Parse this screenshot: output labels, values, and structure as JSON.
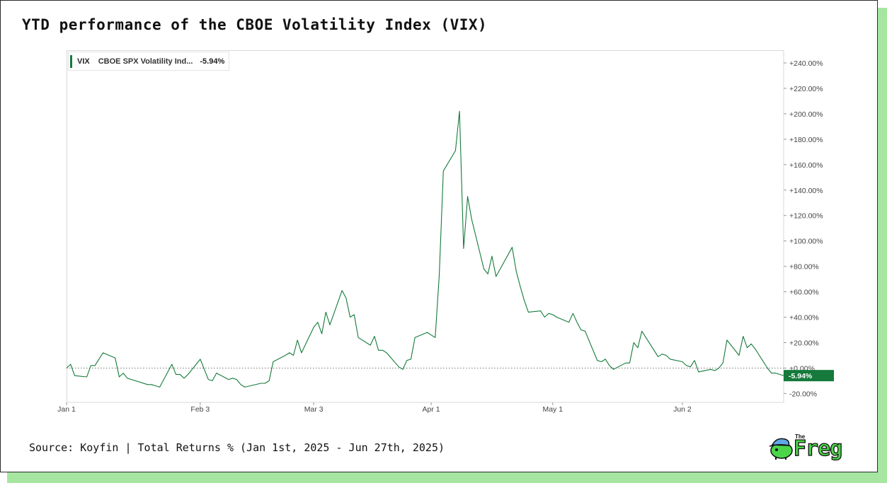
{
  "header": {
    "title": "YTD performance of the CBOE Volatility Index (VIX)"
  },
  "legend": {
    "ticker": "VIX",
    "name": "CBOE SPX Volatility Ind...",
    "value": "-5.94%",
    "color": "#157a3b"
  },
  "footer": {
    "source": "Source: Koyfin | Total Returns % (Jan 1st, 2025 - Jun 27th, 2025)",
    "logo_small": "The",
    "logo_text": "Freg"
  },
  "chart_data": {
    "type": "line",
    "title": "YTD performance of the CBOE Volatility Index (VIX)",
    "xlabel": "",
    "ylabel": "",
    "x_range": [
      "2025-01-01",
      "2025-06-27"
    ],
    "ylim": [
      -27,
      250
    ],
    "y_ticks": [
      -20,
      0,
      20,
      40,
      60,
      80,
      100,
      120,
      140,
      160,
      180,
      200,
      220,
      240
    ],
    "y_tick_labels": [
      "-20.00%",
      "+0.00%",
      "+20.00%",
      "+40.00%",
      "+60.00%",
      "+80.00%",
      "+100.00%",
      "+120.00%",
      "+140.00%",
      "+160.00%",
      "+180.00%",
      "+200.00%",
      "+220.00%",
      "+240.00%"
    ],
    "x_ticks": [
      {
        "date": "2025-01-01",
        "label": "Jan 1"
      },
      {
        "date": "2025-02-03",
        "label": "Feb 3"
      },
      {
        "date": "2025-03-03",
        "label": "Mar 3"
      },
      {
        "date": "2025-04-01",
        "label": "Apr 1"
      },
      {
        "date": "2025-05-01",
        "label": "May 1"
      },
      {
        "date": "2025-06-02",
        "label": "Jun 2"
      }
    ],
    "grid": false,
    "zero_line": "dotted",
    "legend_position": "top-left",
    "last_value_label": "-5.94%",
    "series": [
      {
        "name": "CBOE SPX Volatility Ind...",
        "color": "#157a3b",
        "points": [
          [
            "2025-01-01",
            0
          ],
          [
            "2025-01-02",
            3
          ],
          [
            "2025-01-03",
            -6
          ],
          [
            "2025-01-06",
            -7
          ],
          [
            "2025-01-07",
            2
          ],
          [
            "2025-01-08",
            2
          ],
          [
            "2025-01-10",
            12
          ],
          [
            "2025-01-13",
            8
          ],
          [
            "2025-01-14",
            -7
          ],
          [
            "2025-01-15",
            -4
          ],
          [
            "2025-01-16",
            -8
          ],
          [
            "2025-01-17",
            -9
          ],
          [
            "2025-01-21",
            -13
          ],
          [
            "2025-01-22",
            -13
          ],
          [
            "2025-01-23",
            -14
          ],
          [
            "2025-01-24",
            -15
          ],
          [
            "2025-01-27",
            3
          ],
          [
            "2025-01-28",
            -5
          ],
          [
            "2025-01-29",
            -5
          ],
          [
            "2025-01-30",
            -8
          ],
          [
            "2025-01-31",
            -5
          ],
          [
            "2025-02-03",
            7
          ],
          [
            "2025-02-04",
            -1
          ],
          [
            "2025-02-05",
            -9
          ],
          [
            "2025-02-06",
            -10
          ],
          [
            "2025-02-07",
            -4
          ],
          [
            "2025-02-10",
            -9
          ],
          [
            "2025-02-11",
            -8
          ],
          [
            "2025-02-12",
            -9
          ],
          [
            "2025-02-13",
            -13
          ],
          [
            "2025-02-14",
            -15
          ],
          [
            "2025-02-18",
            -12
          ],
          [
            "2025-02-19",
            -12
          ],
          [
            "2025-02-20",
            -10
          ],
          [
            "2025-02-21",
            5
          ],
          [
            "2025-02-24",
            10
          ],
          [
            "2025-02-25",
            12
          ],
          [
            "2025-02-26",
            10
          ],
          [
            "2025-02-27",
            22
          ],
          [
            "2025-02-28",
            12
          ],
          [
            "2025-03-03",
            32
          ],
          [
            "2025-03-04",
            36
          ],
          [
            "2025-03-05",
            27
          ],
          [
            "2025-03-06",
            44
          ],
          [
            "2025-03-07",
            34
          ],
          [
            "2025-03-10",
            61
          ],
          [
            "2025-03-11",
            55
          ],
          [
            "2025-03-12",
            40
          ],
          [
            "2025-03-13",
            42
          ],
          [
            "2025-03-14",
            24
          ],
          [
            "2025-03-17",
            18
          ],
          [
            "2025-03-18",
            25
          ],
          [
            "2025-03-19",
            14
          ],
          [
            "2025-03-20",
            14
          ],
          [
            "2025-03-21",
            12
          ],
          [
            "2025-03-24",
            1
          ],
          [
            "2025-03-25",
            -1
          ],
          [
            "2025-03-26",
            6
          ],
          [
            "2025-03-27",
            7
          ],
          [
            "2025-03-28",
            24
          ],
          [
            "2025-03-31",
            28
          ],
          [
            "2025-04-01",
            26
          ],
          [
            "2025-04-02",
            24
          ],
          [
            "2025-04-03",
            73
          ],
          [
            "2025-04-04",
            155
          ],
          [
            "2025-04-07",
            171
          ],
          [
            "2025-04-08",
            202
          ],
          [
            "2025-04-09",
            94
          ],
          [
            "2025-04-10",
            135
          ],
          [
            "2025-04-11",
            117
          ],
          [
            "2025-04-14",
            78
          ],
          [
            "2025-04-15",
            74
          ],
          [
            "2025-04-16",
            88
          ],
          [
            "2025-04-17",
            72
          ],
          [
            "2025-04-21",
            95
          ],
          [
            "2025-04-22",
            76
          ],
          [
            "2025-04-23",
            64
          ],
          [
            "2025-04-24",
            53
          ],
          [
            "2025-04-25",
            44
          ],
          [
            "2025-04-28",
            45
          ],
          [
            "2025-04-29",
            40
          ],
          [
            "2025-04-30",
            43
          ],
          [
            "2025-05-01",
            42
          ],
          [
            "2025-05-02",
            40
          ],
          [
            "2025-05-05",
            36
          ],
          [
            "2025-05-06",
            43
          ],
          [
            "2025-05-07",
            36
          ],
          [
            "2025-05-08",
            30
          ],
          [
            "2025-05-09",
            29
          ],
          [
            "2025-05-12",
            6
          ],
          [
            "2025-05-13",
            5
          ],
          [
            "2025-05-14",
            7
          ],
          [
            "2025-05-15",
            2
          ],
          [
            "2025-05-16",
            -1
          ],
          [
            "2025-05-19",
            4
          ],
          [
            "2025-05-20",
            4
          ],
          [
            "2025-05-21",
            20
          ],
          [
            "2025-05-22",
            16
          ],
          [
            "2025-05-23",
            29
          ],
          [
            "2025-05-27",
            9
          ],
          [
            "2025-05-28",
            11
          ],
          [
            "2025-05-29",
            10
          ],
          [
            "2025-05-30",
            7
          ],
          [
            "2025-06-02",
            5
          ],
          [
            "2025-06-03",
            2
          ],
          [
            "2025-06-04",
            1
          ],
          [
            "2025-06-05",
            6
          ],
          [
            "2025-06-06",
            -3
          ],
          [
            "2025-06-09",
            -1
          ],
          [
            "2025-06-10",
            -2
          ],
          [
            "2025-06-11",
            0
          ],
          [
            "2025-06-12",
            4
          ],
          [
            "2025-06-13",
            22
          ],
          [
            "2025-06-16",
            10
          ],
          [
            "2025-06-17",
            25
          ],
          [
            "2025-06-18",
            16
          ],
          [
            "2025-06-19",
            19
          ],
          [
            "2025-06-20",
            15
          ],
          [
            "2025-06-23",
            0
          ],
          [
            "2025-06-24",
            -4
          ],
          [
            "2025-06-25",
            -4
          ],
          [
            "2025-06-27",
            -5.94
          ]
        ]
      }
    ]
  }
}
